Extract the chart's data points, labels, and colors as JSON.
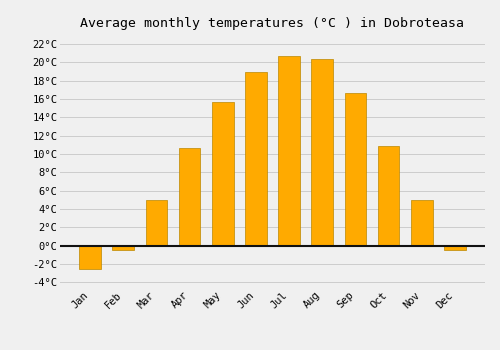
{
  "title": "Average monthly temperatures (°C ) in Dobroteasa",
  "months": [
    "Jan",
    "Feb",
    "Mar",
    "Apr",
    "May",
    "Jun",
    "Jul",
    "Aug",
    "Sep",
    "Oct",
    "Nov",
    "Dec"
  ],
  "values": [
    -2.5,
    -0.5,
    5.0,
    10.7,
    15.7,
    19.0,
    20.7,
    20.4,
    16.7,
    10.9,
    5.0,
    -0.5
  ],
  "bar_color": "#FFAA00",
  "bar_edge_color": "#BB8800",
  "background_color": "#F0F0F0",
  "grid_color": "#CCCCCC",
  "ylim": [
    -4.5,
    23
  ],
  "yticks": [
    -4,
    -2,
    0,
    2,
    4,
    6,
    8,
    10,
    12,
    14,
    16,
    18,
    20,
    22
  ],
  "title_fontsize": 9.5,
  "tick_fontsize": 7.5,
  "zero_line_color": "#111111",
  "bar_width": 0.65
}
